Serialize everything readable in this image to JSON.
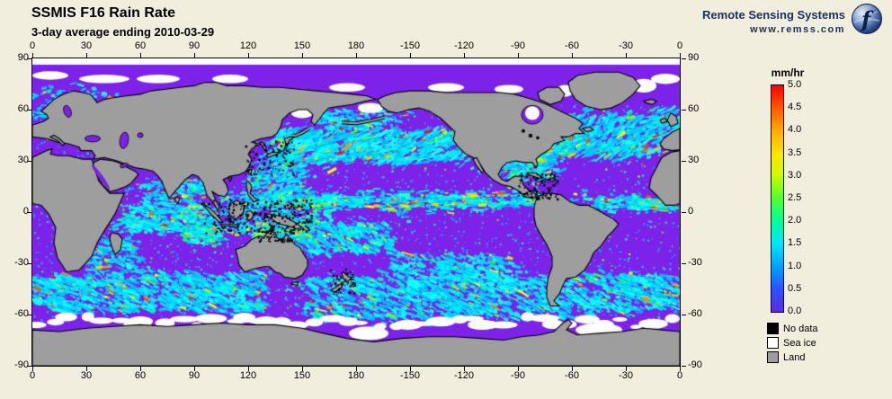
{
  "header": {
    "title": "SSMIS F16 Rain Rate",
    "subtitle": "3-day average ending 2010-03-29"
  },
  "branding": {
    "name": "Remote Sensing Systems",
    "url": "www.remss.com",
    "logo": "globe-f-icon"
  },
  "axes": {
    "lon_labels": [
      "0",
      "30",
      "60",
      "90",
      "120",
      "150",
      "180",
      "-150",
      "-120",
      "-90",
      "-60",
      "-30",
      "0"
    ],
    "lat_labels": [
      "90",
      "60",
      "30",
      "0",
      "-30",
      "-60",
      "-90"
    ]
  },
  "colorbar": {
    "title": "mm/hr",
    "tick_labels": [
      "5.0",
      "4.5",
      "4.0",
      "3.5",
      "3.0",
      "2.5",
      "2.0",
      "1.5",
      "1.0",
      "0.5",
      "0.0"
    ],
    "gradient_top_to_bottom": [
      "#ff0000",
      "#ff5a00",
      "#ffab00",
      "#ffe400",
      "#c8ff00",
      "#50ff30",
      "#00ff9c",
      "#00e4ff",
      "#00a2ff",
      "#2a52ff",
      "#5b2be0"
    ]
  },
  "legend": {
    "items": [
      {
        "label": "No data",
        "color": "#000000"
      },
      {
        "label": "Sea ice",
        "color": "#ffffff"
      },
      {
        "label": "Land",
        "color": "#9e9e9e"
      }
    ]
  },
  "map_colors": {
    "background": "#f1eede",
    "ocean": "#7d22e8",
    "land": "#9e9e9e",
    "sea_ice": "#ffffff",
    "no_data": "#000000",
    "rain_light": [
      "#00c0ff",
      "#00d8ff",
      "#00f0ff",
      "#18ffff"
    ],
    "rain_mid": [
      "#00ffd0",
      "#00ff90",
      "#30ff50",
      "#80ff20",
      "#c0ff00"
    ],
    "rain_heavy": [
      "#ffff00",
      "#ffd000",
      "#ff9800"
    ],
    "rain_extreme": [
      "#ff5000",
      "#ff1000"
    ]
  }
}
